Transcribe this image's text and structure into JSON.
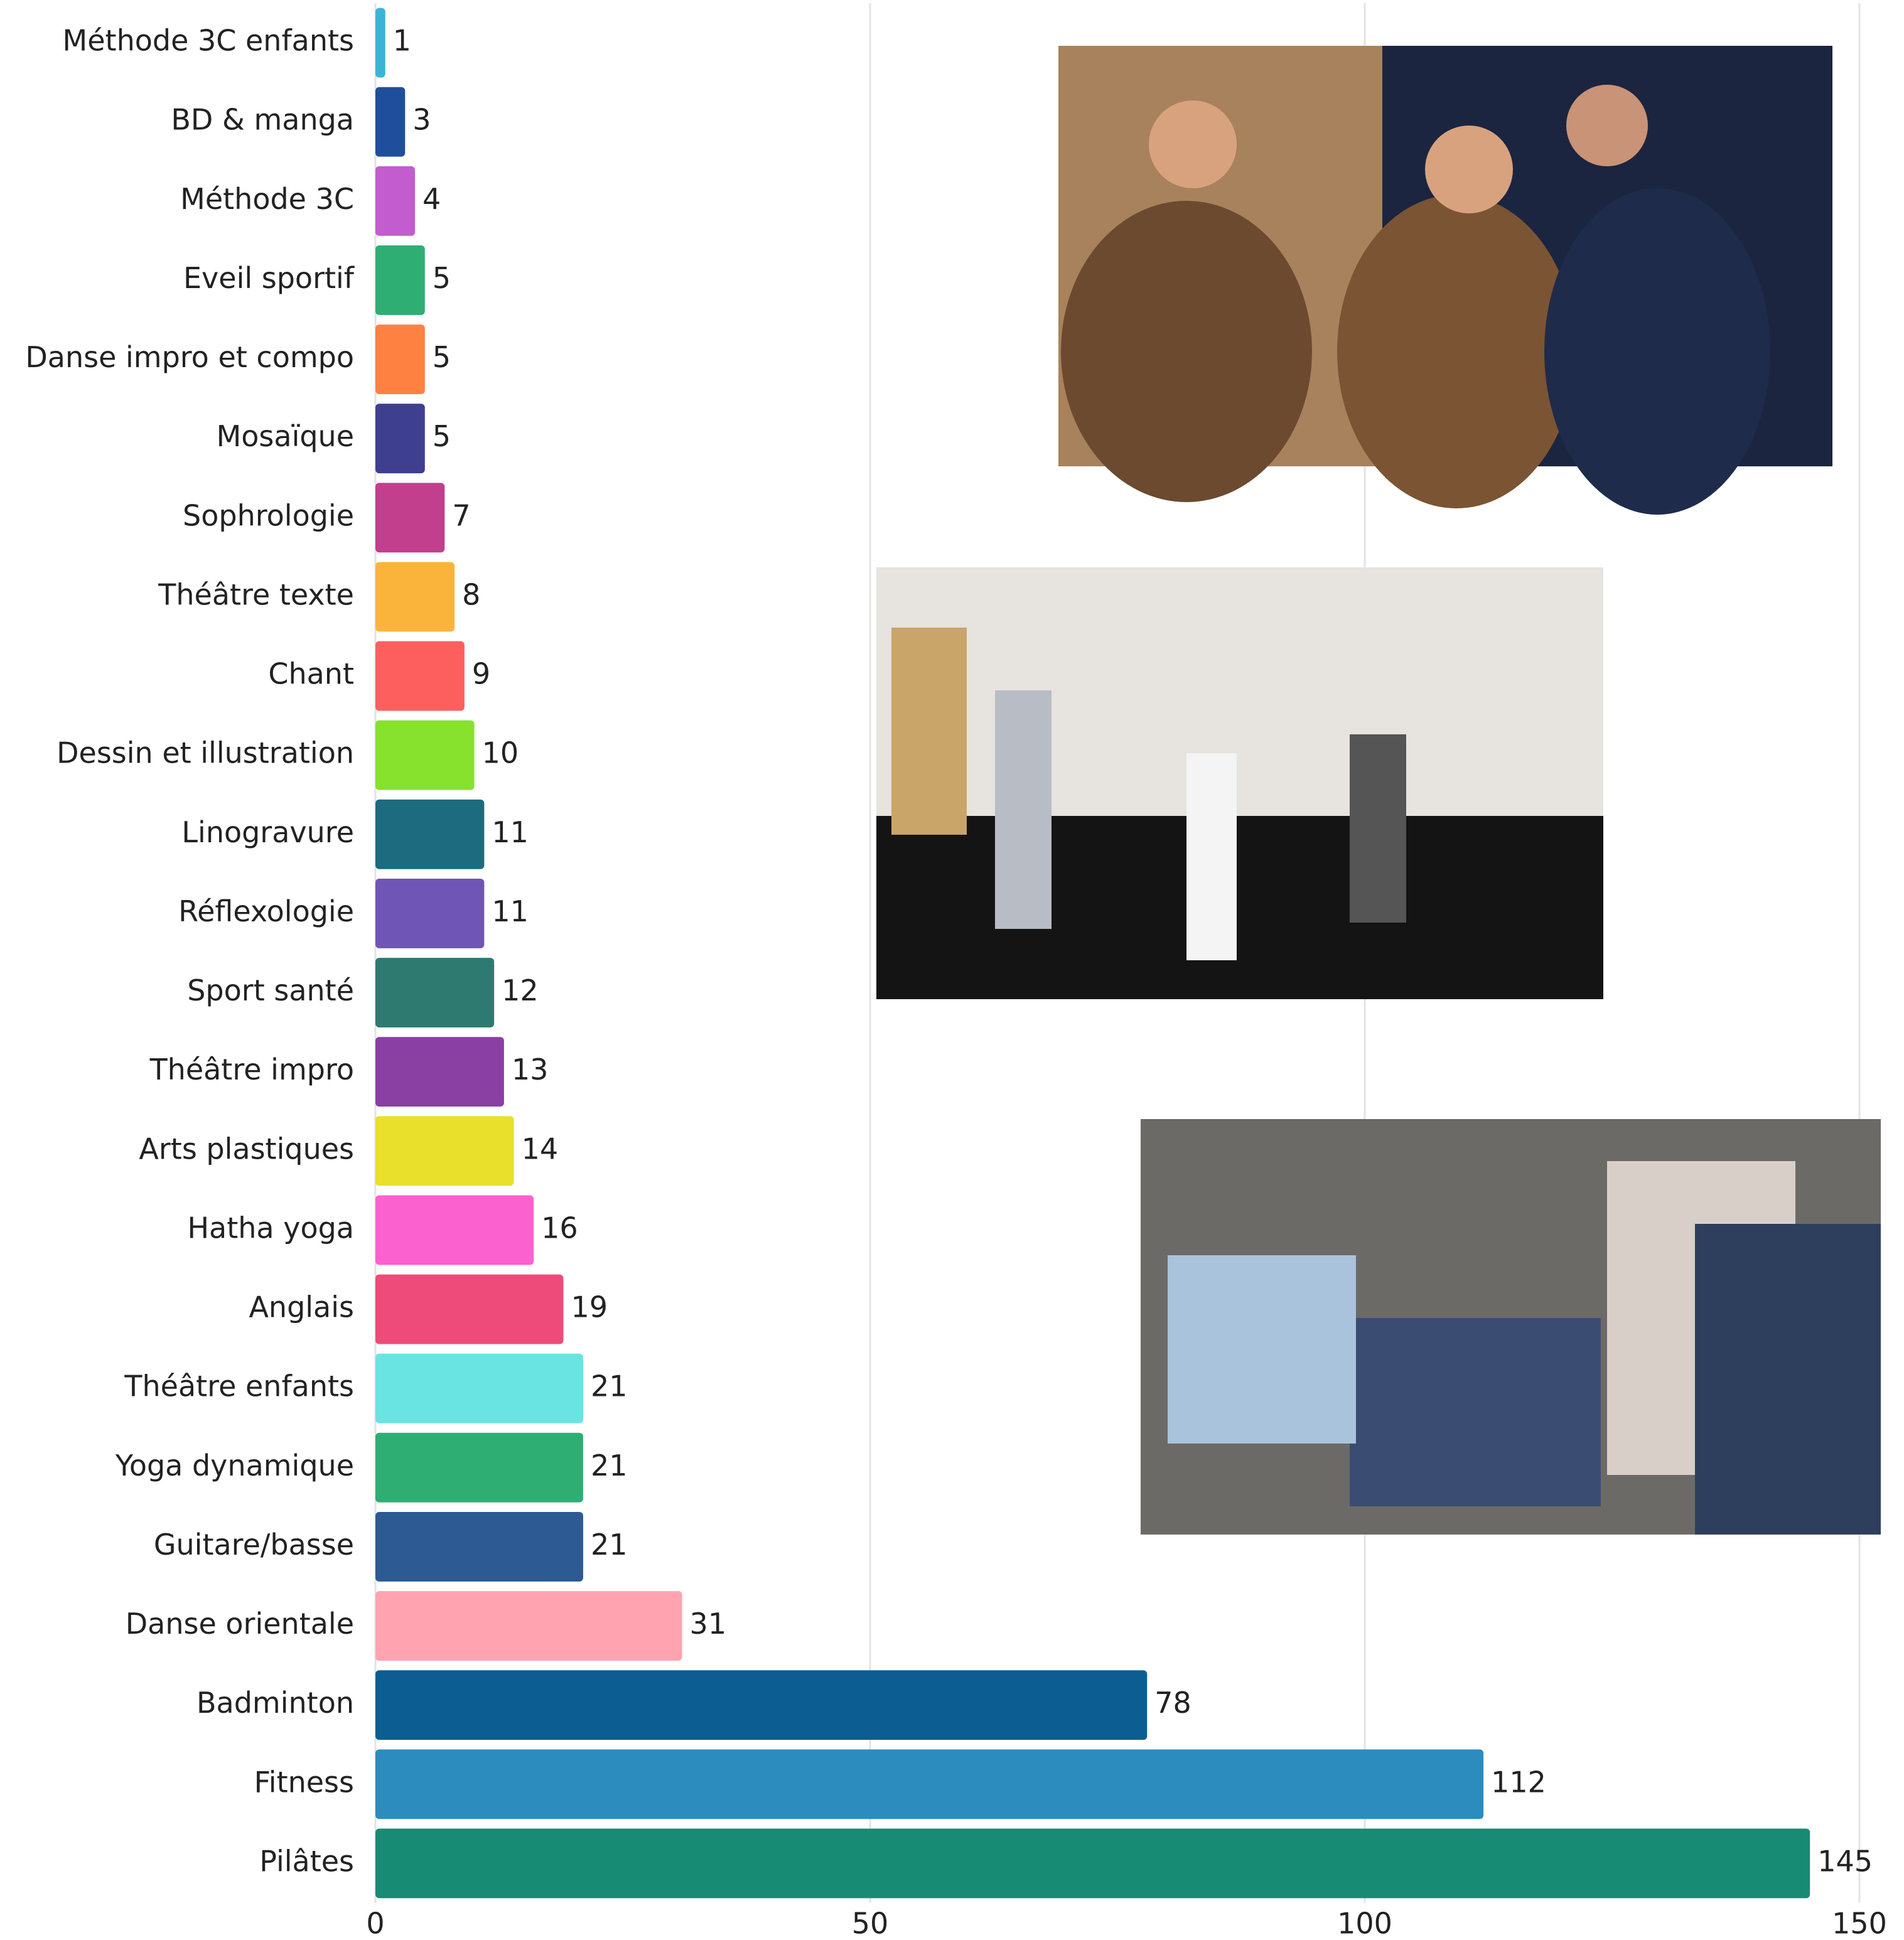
{
  "chart_data": {
    "type": "bar",
    "orientation": "horizontal",
    "categories": [
      "Méthode 3C enfants",
      "BD & manga",
      "Méthode 3C",
      "Eveil sportif",
      "Danse impro et compo",
      "Mosaïque",
      "Sophrologie",
      "Théâtre texte",
      "Chant",
      "Dessin et illustration",
      "Linogravure",
      "Réflexologie",
      "Sport santé",
      "Théâtre impro",
      "Arts plastiques",
      "Hatha yoga",
      "Anglais",
      "Théâtre enfants",
      "Yoga dynamique",
      "Guitare/basse",
      "Danse orientale",
      "Badminton",
      "Fitness",
      "Pilâtes"
    ],
    "values": [
      1,
      3,
      4,
      5,
      5,
      5,
      7,
      8,
      9,
      10,
      11,
      11,
      12,
      13,
      14,
      16,
      19,
      21,
      21,
      21,
      31,
      78,
      112,
      145
    ],
    "colors": [
      "#3ab5d6",
      "#1f4e9c",
      "#c25ccf",
      "#2fae74",
      "#ff8142",
      "#3e3f8f",
      "#c23f8d",
      "#fbb43b",
      "#fd5f5f",
      "#86e22d",
      "#1c6b7e",
      "#6f55b5",
      "#2f7a70",
      "#8a3fa3",
      "#e8e02a",
      "#fb62d0",
      "#ee4a7a",
      "#6ae3e3",
      "#2fae74",
      "#2d5a93",
      "#ffa3b1",
      "#0c5d92",
      "#2c8cbd",
      "#178b74"
    ],
    "xlim": [
      0,
      150
    ],
    "xticks": [
      0,
      50,
      100,
      150
    ],
    "grid": true
  }
}
